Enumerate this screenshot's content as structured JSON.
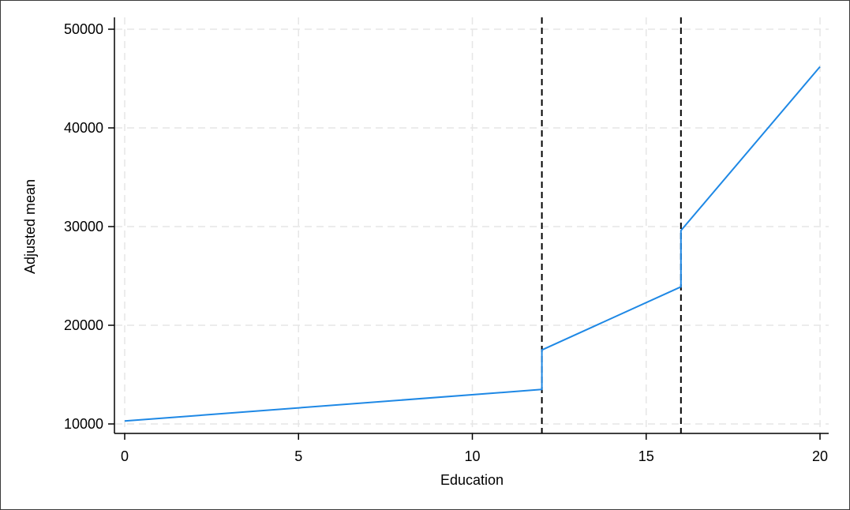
{
  "chart_data": {
    "type": "line",
    "title": "",
    "xlabel": "Education",
    "ylabel": "Adjusted mean",
    "xlim": [
      0,
      20
    ],
    "ylim": [
      10000,
      50000
    ],
    "xticks": [
      0,
      5,
      10,
      15,
      20
    ],
    "yticks": [
      10000,
      20000,
      30000,
      40000,
      50000
    ],
    "xtick_labels": [
      "0",
      "5",
      "10",
      "15",
      "20"
    ],
    "ytick_labels": [
      "10000",
      "20000",
      "30000",
      "40000",
      "50000"
    ],
    "grid": true,
    "legend": "none",
    "reference_lines_x": [
      12,
      16
    ],
    "series": [
      {
        "color": "#1e88e5",
        "points": [
          [
            0,
            10300
          ],
          [
            12,
            13500
          ],
          [
            12,
            17500
          ],
          [
            16,
            23900
          ],
          [
            16,
            29600
          ],
          [
            20,
            46200
          ]
        ]
      }
    ]
  }
}
